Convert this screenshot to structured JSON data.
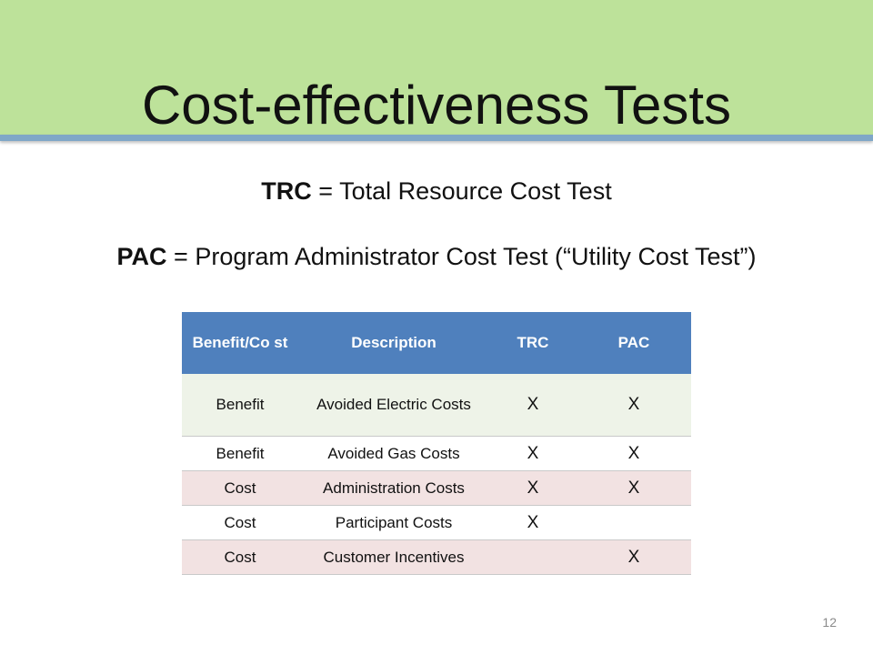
{
  "slide": {
    "title": "Cost-effectiveness Tests",
    "page_number": "12"
  },
  "definitions": {
    "trc": {
      "abbr": "TRC",
      "text": " = Total Resource Cost Test"
    },
    "pac": {
      "abbr": "PAC",
      "text": " = Program Administrator Cost Test (“Utility Cost Test”)"
    }
  },
  "table": {
    "headers": [
      "Benefit/Co st",
      "Description",
      "TRC",
      "PAC"
    ],
    "rows": [
      {
        "type": "Benefit",
        "description": "Avoided Electric Costs",
        "trc": "X",
        "pac": "X"
      },
      {
        "type": "Benefit",
        "description": "Avoided Gas Costs",
        "trc": "X",
        "pac": "X"
      },
      {
        "type": "Cost",
        "description": "Administration Costs",
        "trc": "X",
        "pac": "X"
      },
      {
        "type": "Cost",
        "description": "Participant Costs",
        "trc": "X",
        "pac": ""
      },
      {
        "type": "Cost",
        "description": "Customer Incentives",
        "trc": "",
        "pac": "X"
      }
    ]
  },
  "colors": {
    "title_band": "#bde29a",
    "title_rule": "#7fa7c7",
    "table_header": "#4f80bd",
    "row_benefit_first": "#eef3e8",
    "row_cost": "#f2e2e2"
  }
}
